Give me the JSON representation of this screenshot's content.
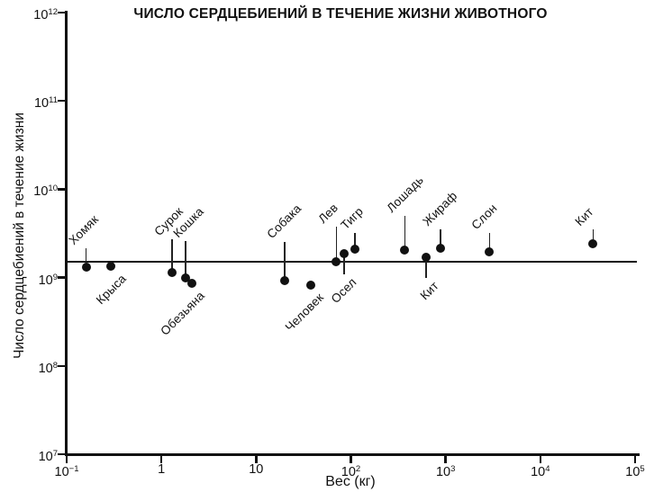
{
  "colors": {
    "ink": "#111111",
    "background": "#ffffff"
  },
  "chart_data": {
    "type": "scatter",
    "title": "ЧИСЛО СЕРДЦЕБИЕНИЙ В ТЕЧЕНИЕ ЖИЗНИ ЖИВОТНОГО",
    "xlabel": "Вес (кг)",
    "ylabel": "Число сердцебиений в течение жизни",
    "x_scale": "log",
    "y_scale": "log",
    "xlim": [
      0.1,
      100000
    ],
    "ylim": [
      10000000,
      1000000000000
    ],
    "grid": false,
    "legend": "none",
    "reference_line": {
      "heartbeats": 1500000000
    },
    "x_ticks": [
      {
        "value": 0.1,
        "base": "10",
        "exp": "−1"
      },
      {
        "value": 1,
        "text": "1"
      },
      {
        "value": 10,
        "text": "10"
      },
      {
        "value": 100,
        "base": "10",
        "exp": "2"
      },
      {
        "value": 1000,
        "base": "10",
        "exp": "3"
      },
      {
        "value": 10000,
        "base": "10",
        "exp": "4"
      },
      {
        "value": 100000,
        "base": "10",
        "exp": "5"
      }
    ],
    "y_ticks": [
      {
        "value": 1000000000000,
        "base": "10",
        "exp": "12"
      },
      {
        "value": 100000000000,
        "base": "10",
        "exp": "11"
      },
      {
        "value": 10000000000,
        "base": "10",
        "exp": "10"
      },
      {
        "value": 1000000000,
        "base": "10",
        "exp": "9"
      },
      {
        "value": 100000000,
        "base": "10",
        "exp": "8"
      },
      {
        "value": 10000000,
        "base": "10",
        "exp": "7"
      }
    ],
    "points": [
      {
        "label": "Хомяк",
        "weight_kg": 0.16,
        "heartbeats": 1300000000,
        "label_side": "above",
        "leader": 16
      },
      {
        "label": "Крыса",
        "weight_kg": 0.29,
        "heartbeats": 1330000000,
        "label_side": "below",
        "leader": 0,
        "ldx": 4
      },
      {
        "label": "Сурок",
        "weight_kg": 1.3,
        "heartbeats": 1150000000,
        "label_side": "above",
        "leader": 32
      },
      {
        "label": "Кошка",
        "weight_kg": 1.8,
        "heartbeats": 1000000000,
        "label_side": "above",
        "leader": 36,
        "ldx": 6
      },
      {
        "label": "Обезьяна",
        "weight_kg": 2.1,
        "heartbeats": 870000000,
        "label_side": "below",
        "leader": 0
      },
      {
        "label": "Собака",
        "weight_kg": 20,
        "heartbeats": 930000000,
        "label_side": "above",
        "leader": 38
      },
      {
        "label": "Человек",
        "weight_kg": 38,
        "heartbeats": 830000000,
        "label_side": "below",
        "leader": 0
      },
      {
        "label": "Лев",
        "weight_kg": 70,
        "heartbeats": 1500000000,
        "label_side": "above",
        "leader": 34
      },
      {
        "label": "Осел",
        "weight_kg": 85,
        "heartbeats": 1850000000,
        "label_side": "below",
        "leader": 18
      },
      {
        "label": "Тигр",
        "weight_kg": 110,
        "heartbeats": 2100000000,
        "label_side": "above",
        "leader": 13,
        "ldx": 4
      },
      {
        "label": "Лошадь",
        "weight_kg": 370,
        "heartbeats": 2050000000,
        "label_side": "above",
        "leader": 33
      },
      {
        "label": "Кит",
        "weight_kg": 620,
        "heartbeats": 1700000000,
        "label_side": "below",
        "leader": 18
      },
      {
        "label": "Жираф",
        "weight_kg": 880,
        "heartbeats": 2150000000,
        "label_side": "above",
        "leader": 16
      },
      {
        "label": "Слон",
        "weight_kg": 2900,
        "heartbeats": 1950000000,
        "label_side": "above",
        "leader": 16
      },
      {
        "label": "Кит",
        "weight_kg": 36000,
        "heartbeats": 2400000000,
        "label_side": "above",
        "leader": 11
      }
    ]
  }
}
